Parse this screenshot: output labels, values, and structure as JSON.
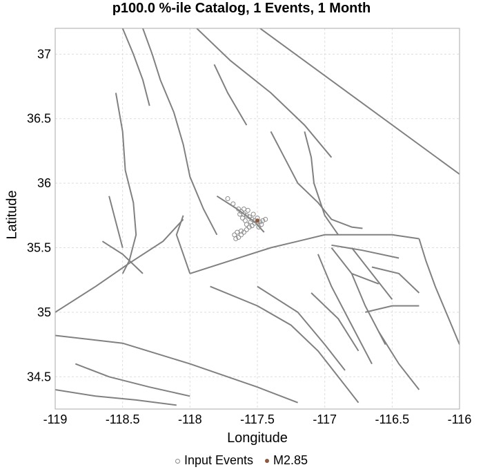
{
  "chart_data": {
    "type": "scatter",
    "title": "p100.0 %-ile Catalog, 1 Events, 1 Month",
    "xlabel": "Longitude",
    "ylabel": "Latitude",
    "xlim": [
      -119,
      -116
    ],
    "ylim": [
      34.25,
      37.2
    ],
    "x_ticks": [
      -119,
      -118.5,
      -118,
      -117.5,
      -117,
      -116.5,
      -116
    ],
    "x_tick_labels": [
      "-119",
      "-118.5",
      "-118",
      "-117.5",
      "-117",
      "-116.5",
      "-116"
    ],
    "y_ticks": [
      34.5,
      35,
      35.5,
      36,
      36.5,
      37
    ],
    "y_tick_labels": [
      "34.5",
      "35",
      "35.5",
      "36",
      "36.5",
      "37"
    ],
    "grid": true,
    "legend_position": "bottom",
    "colors": {
      "fault": "#808080",
      "input_event": "#8a8a8a",
      "main_event": "#8b5a3c",
      "grid": "#dddddd"
    },
    "series": [
      {
        "name": "Input Events",
        "marker": "open-circle",
        "points": [
          [
            -117.72,
            35.88
          ],
          [
            -117.68,
            35.84
          ],
          [
            -117.64,
            35.8
          ],
          [
            -117.62,
            35.78
          ],
          [
            -117.6,
            35.76
          ],
          [
            -117.58,
            35.75
          ],
          [
            -117.56,
            35.74
          ],
          [
            -117.54,
            35.72
          ],
          [
            -117.52,
            35.71
          ],
          [
            -117.5,
            35.7
          ],
          [
            -117.48,
            35.7
          ],
          [
            -117.46,
            35.71
          ],
          [
            -117.52,
            35.69
          ],
          [
            -117.54,
            35.67
          ],
          [
            -117.56,
            35.66
          ],
          [
            -117.58,
            35.64
          ],
          [
            -117.6,
            35.62
          ],
          [
            -117.62,
            35.6
          ],
          [
            -117.64,
            35.58
          ],
          [
            -117.66,
            35.57
          ],
          [
            -117.62,
            35.63
          ],
          [
            -117.58,
            35.68
          ],
          [
            -117.55,
            35.7
          ],
          [
            -117.5,
            35.73
          ],
          [
            -117.47,
            35.68
          ],
          [
            -117.49,
            35.66
          ],
          [
            -117.44,
            35.72
          ],
          [
            -117.6,
            35.8
          ],
          [
            -117.57,
            35.79
          ],
          [
            -117.63,
            35.76
          ],
          [
            -117.61,
            35.73
          ],
          [
            -117.59,
            35.71
          ],
          [
            -117.65,
            35.62
          ],
          [
            -117.67,
            35.6
          ],
          [
            -117.53,
            35.76
          ]
        ]
      },
      {
        "name": "M2.85",
        "marker": "filled-circle",
        "points": [
          [
            -117.5,
            35.71
          ]
        ]
      }
    ],
    "faults": [
      [
        [
          -118.35,
          37.2
        ],
        [
          -118.28,
          37.0
        ],
        [
          -118.22,
          36.8
        ],
        [
          -118.12,
          36.55
        ],
        [
          -118.05,
          36.3
        ],
        [
          -118.0,
          36.05
        ],
        [
          -117.9,
          35.8
        ],
        [
          -117.8,
          35.6
        ]
      ],
      [
        [
          -118.5,
          37.2
        ],
        [
          -118.42,
          37.0
        ],
        [
          -118.35,
          36.8
        ],
        [
          -118.3,
          36.6
        ]
      ],
      [
        [
          -117.95,
          37.2
        ],
        [
          -117.7,
          36.95
        ],
        [
          -117.4,
          36.7
        ],
        [
          -117.15,
          36.45
        ],
        [
          -116.95,
          36.2
        ]
      ],
      [
        [
          -117.48,
          37.2
        ],
        [
          -116.0,
          36.07
        ]
      ],
      [
        [
          -117.82,
          36.92
        ],
        [
          -117.72,
          36.7
        ],
        [
          -117.58,
          36.45
        ]
      ],
      [
        [
          -117.4,
          36.4
        ],
        [
          -117.3,
          36.2
        ],
        [
          -117.2,
          36.0
        ],
        [
          -117.05,
          35.85
        ],
        [
          -116.95,
          35.72
        ],
        [
          -116.8,
          35.66
        ],
        [
          -116.72,
          35.65
        ]
      ],
      [
        [
          -117.15,
          36.4
        ],
        [
          -117.1,
          36.2
        ],
        [
          -117.08,
          36.0
        ],
        [
          -117.0,
          35.75
        ],
        [
          -116.9,
          35.6
        ]
      ],
      [
        [
          -118.55,
          36.7
        ],
        [
          -118.5,
          36.4
        ],
        [
          -118.48,
          36.1
        ],
        [
          -118.42,
          35.85
        ],
        [
          -118.4,
          35.6
        ],
        [
          -118.45,
          35.4
        ],
        [
          -118.5,
          35.3
        ]
      ],
      [
        [
          -118.65,
          35.55
        ],
        [
          -118.5,
          35.45
        ],
        [
          -118.35,
          35.3
        ]
      ],
      [
        [
          -118.05,
          35.75
        ],
        [
          -118.1,
          35.6
        ],
        [
          -118.05,
          35.45
        ],
        [
          -118.0,
          35.3
        ]
      ],
      [
        [
          -118.0,
          35.3
        ],
        [
          -117.7,
          35.4
        ],
        [
          -117.4,
          35.5
        ],
        [
          -117.2,
          35.55
        ],
        [
          -117.0,
          35.6
        ],
        [
          -116.8,
          35.6
        ],
        [
          -116.5,
          35.6
        ],
        [
          -116.3,
          35.57
        ]
      ],
      [
        [
          -116.3,
          35.57
        ],
        [
          -116.25,
          35.4
        ],
        [
          -116.18,
          35.2
        ],
        [
          -116.08,
          34.95
        ],
        [
          -116.0,
          34.75
        ]
      ],
      [
        [
          -119.0,
          35.0
        ],
        [
          -118.7,
          35.2
        ],
        [
          -118.45,
          35.38
        ],
        [
          -118.2,
          35.55
        ],
        [
          -118.05,
          35.72
        ]
      ],
      [
        [
          -119.0,
          34.82
        ],
        [
          -118.5,
          34.76
        ],
        [
          -118.0,
          34.6
        ],
        [
          -117.5,
          34.42
        ],
        [
          -117.2,
          34.3
        ]
      ],
      [
        [
          -117.85,
          35.2
        ],
        [
          -117.5,
          35.05
        ],
        [
          -117.25,
          34.9
        ],
        [
          -117.05,
          34.7
        ],
        [
          -116.9,
          34.5
        ],
        [
          -116.75,
          34.3
        ]
      ],
      [
        [
          -117.5,
          35.2
        ],
        [
          -117.2,
          35.0
        ],
        [
          -117.0,
          34.75
        ],
        [
          -116.85,
          34.55
        ]
      ],
      [
        [
          -117.1,
          35.15
        ],
        [
          -116.9,
          34.95
        ],
        [
          -116.75,
          34.7
        ]
      ],
      [
        [
          -117.05,
          35.45
        ],
        [
          -116.95,
          35.2
        ],
        [
          -116.8,
          34.9
        ],
        [
          -116.65,
          34.6
        ]
      ],
      [
        [
          -116.95,
          35.5
        ],
        [
          -116.8,
          35.3
        ],
        [
          -116.7,
          35.05
        ],
        [
          -116.55,
          34.75
        ]
      ],
      [
        [
          -116.8,
          35.5
        ],
        [
          -116.65,
          35.3
        ],
        [
          -116.5,
          35.1
        ]
      ],
      [
        [
          -116.65,
          35.35
        ],
        [
          -116.45,
          35.3
        ],
        [
          -116.3,
          35.15
        ]
      ],
      [
        [
          -116.7,
          35.0
        ],
        [
          -116.5,
          35.05
        ],
        [
          -116.3,
          35.05
        ]
      ],
      [
        [
          -116.6,
          34.85
        ],
        [
          -116.45,
          34.6
        ],
        [
          -116.3,
          34.4
        ]
      ],
      [
        [
          -116.8,
          35.3
        ],
        [
          -116.6,
          35.22
        ]
      ],
      [
        [
          -117.8,
          35.9
        ],
        [
          -117.65,
          35.8
        ],
        [
          -117.52,
          35.7
        ],
        [
          -117.45,
          35.62
        ]
      ],
      [
        [
          -116.95,
          35.52
        ],
        [
          -116.72,
          35.48
        ],
        [
          -116.45,
          35.42
        ]
      ],
      [
        [
          -118.6,
          35.9
        ],
        [
          -118.55,
          35.7
        ],
        [
          -118.5,
          35.5
        ]
      ],
      [
        [
          -119.0,
          34.4
        ],
        [
          -118.7,
          34.35
        ],
        [
          -118.4,
          34.32
        ],
        [
          -118.1,
          34.28
        ]
      ],
      [
        [
          -118.85,
          34.6
        ],
        [
          -118.6,
          34.5
        ],
        [
          -118.3,
          34.42
        ],
        [
          -118.0,
          34.35
        ]
      ]
    ]
  }
}
